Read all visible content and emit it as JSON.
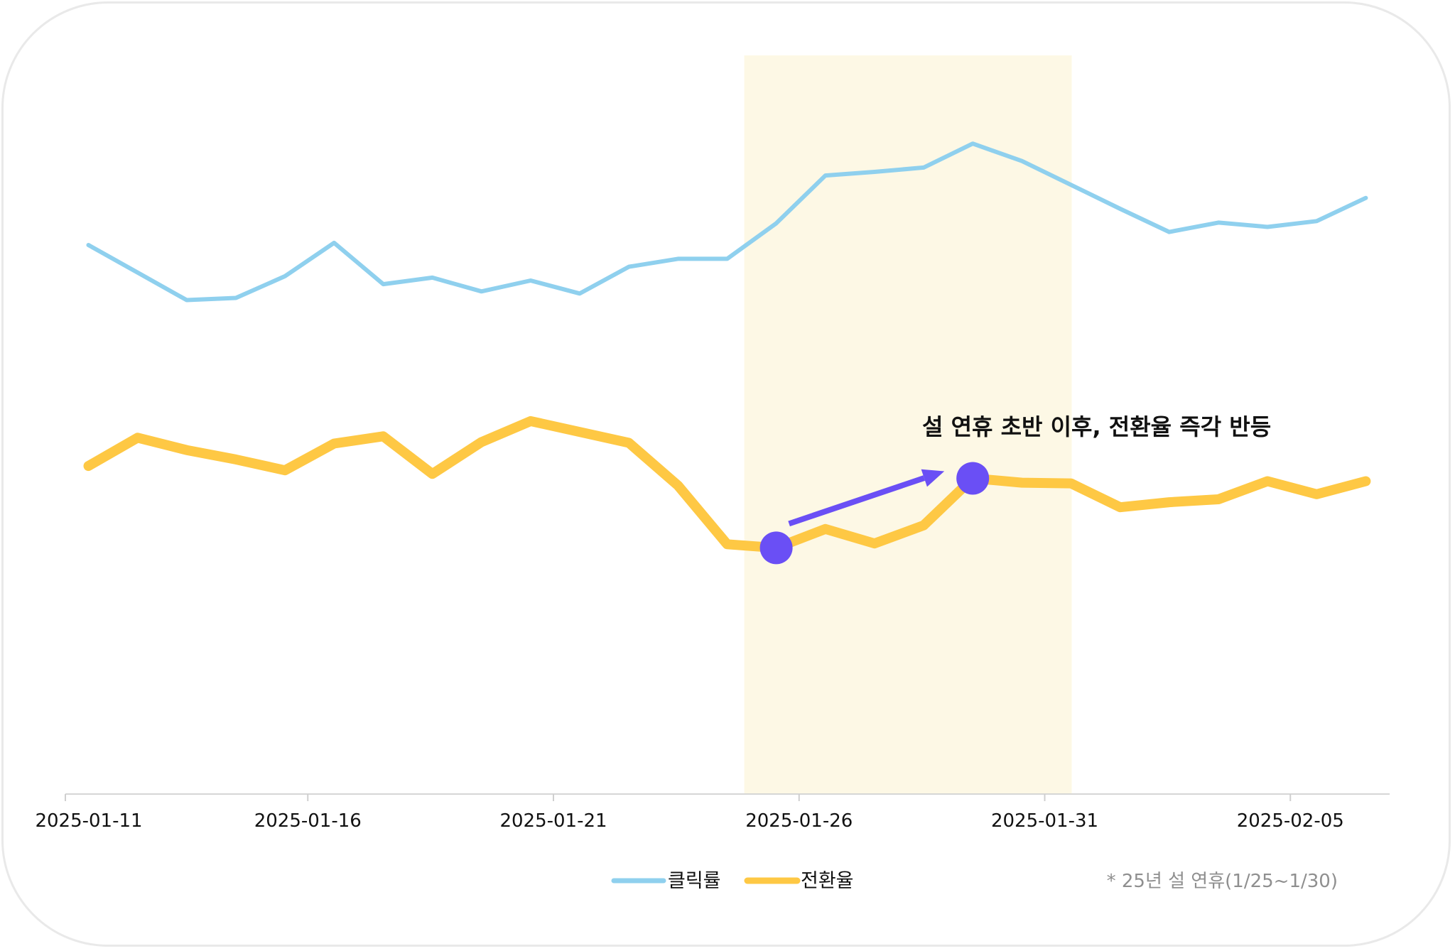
{
  "chart_data": {
    "type": "line",
    "title": "",
    "xlabel": "",
    "ylabel": "",
    "x": [
      "2025-01-11",
      "2025-01-12",
      "2025-01-13",
      "2025-01-14",
      "2025-01-15",
      "2025-01-16",
      "2025-01-17",
      "2025-01-18",
      "2025-01-19",
      "2025-01-20",
      "2025-01-21",
      "2025-01-22",
      "2025-01-23",
      "2025-01-24",
      "2025-01-25",
      "2025-01-26",
      "2025-01-27",
      "2025-01-28",
      "2025-01-29",
      "2025-01-30",
      "2025-01-31",
      "2025-02-01",
      "2025-02-02",
      "2025-02-03",
      "2025-02-04",
      "2025-02-05",
      "2025-02-06"
    ],
    "x_ticks": [
      "2025-01-11",
      "2025-01-16",
      "2025-01-21",
      "2025-01-26",
      "2025-01-31",
      "2025-02-05"
    ],
    "ylim": [
      0,
      100
    ],
    "y_axis_visible": false,
    "grid": false,
    "highlight_band": {
      "start": "2025-01-25",
      "end": "2025-01-31",
      "color": "#fdf8e5"
    },
    "series": [
      {
        "name": "클릭률",
        "color": "#8fd0ee",
        "values": [
          75.0,
          71.2,
          67.4,
          67.7,
          70.7,
          75.3,
          69.6,
          70.5,
          68.6,
          70.1,
          68.3,
          72.0,
          73.1,
          73.1,
          78.0,
          84.6,
          85.1,
          85.7,
          89.0,
          86.6,
          83.3,
          80.0,
          76.8,
          78.1,
          77.5,
          78.3,
          81.5
        ]
      },
      {
        "name": "전환율",
        "color": "#fec844",
        "values": [
          44.5,
          48.4,
          46.7,
          45.4,
          43.9,
          47.6,
          48.6,
          43.4,
          47.8,
          50.7,
          49.2,
          47.7,
          41.8,
          33.7,
          33.2,
          35.8,
          33.8,
          36.3,
          42.8,
          42.2,
          42.1,
          38.8,
          39.5,
          39.9,
          42.4,
          40.6,
          42.4
        ]
      }
    ],
    "markers": [
      {
        "series": "전환율",
        "x": "2025-01-25",
        "y": 33.2,
        "color": "#6a4ff5"
      },
      {
        "series": "전환율",
        "x": "2025-01-29",
        "y": 42.8,
        "color": "#6a4ff5"
      }
    ],
    "annotation": {
      "text": "설 연휴 초반 이후, 전환율 즉각 반등",
      "arrow_color": "#6a4ff5"
    },
    "legend": {
      "placement": "bottom-center",
      "items": [
        "클릭률",
        "전환율"
      ]
    },
    "note": "* 25년 설 연휴(1/25~1/30)"
  }
}
